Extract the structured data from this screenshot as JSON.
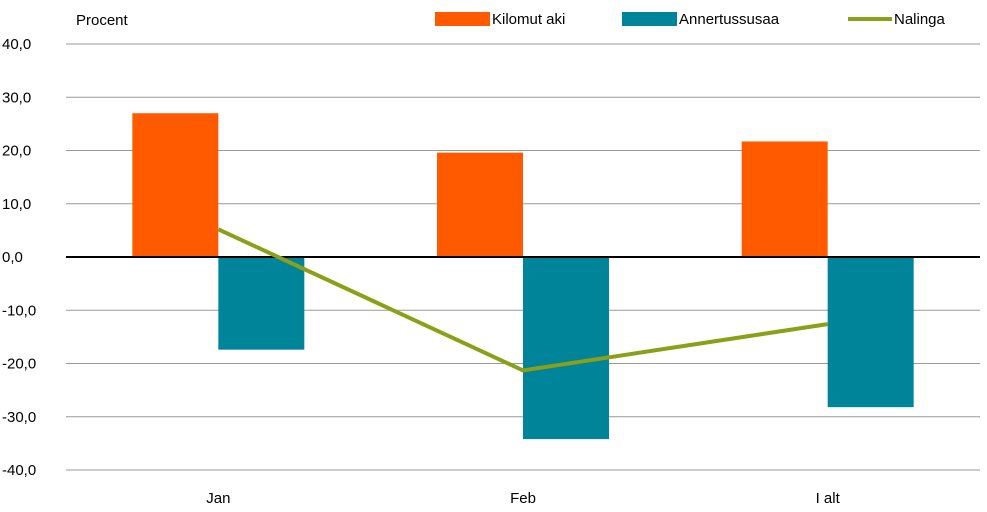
{
  "chart_data": {
    "type": "bar",
    "ylabel": "Procent",
    "categories": [
      "Jan",
      "Feb",
      "I alt"
    ],
    "ylim": [
      -40,
      40
    ],
    "yticks": [
      40,
      30,
      20,
      10,
      0,
      -10,
      -20,
      -30,
      -40
    ],
    "ytick_labels": [
      "40,0",
      "30,0",
      "20,0",
      "10,0",
      "0,0",
      "-10,0",
      "-20,0",
      "-30,0",
      "-40,0"
    ],
    "grid": true,
    "legend_position": "top-right",
    "series": [
      {
        "name": "Kilomut aki",
        "type": "bar",
        "color": "#ff5a00",
        "values": [
          27.0,
          19.6,
          21.7
        ]
      },
      {
        "name": "Annertussusaa",
        "type": "bar",
        "color": "#00849a",
        "values": [
          -17.4,
          -34.2,
          -28.2
        ]
      },
      {
        "name": "Nalinga",
        "type": "line",
        "color": "#8ba017",
        "values": [
          5.2,
          -21.3,
          -12.6
        ]
      }
    ]
  }
}
